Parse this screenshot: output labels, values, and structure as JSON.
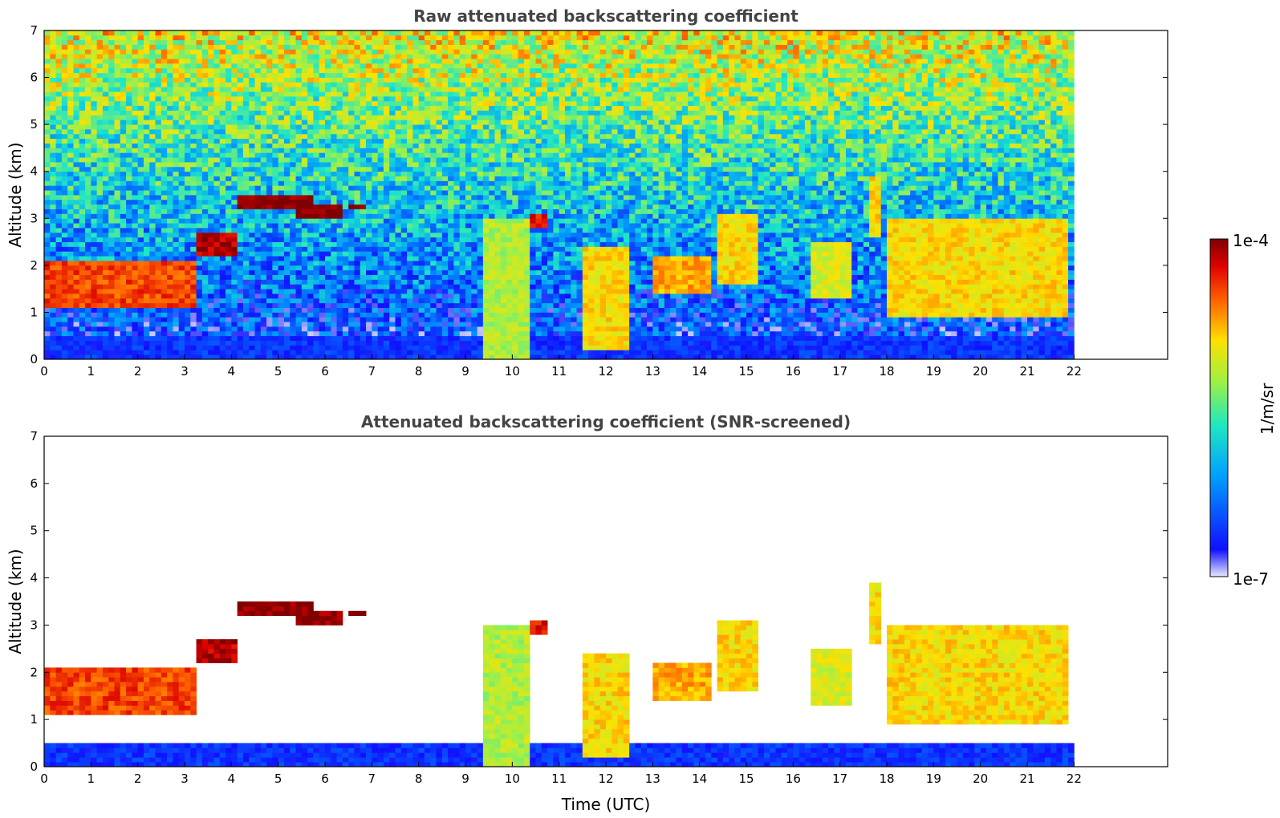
{
  "chart_data": [
    {
      "type": "heatmap",
      "title": "Raw attenuated backscattering coefficient",
      "xlabel": "",
      "ylabel": "Altitude (km)",
      "xlim": [
        0,
        24
      ],
      "ylim": [
        0,
        7
      ],
      "x_ticks": [
        "0",
        "1",
        "2",
        "3",
        "4",
        "5",
        "6",
        "7",
        "8",
        "9",
        "10",
        "11",
        "12",
        "13",
        "14",
        "15",
        "16",
        "17",
        "18",
        "19",
        "20",
        "21",
        "22"
      ],
      "y_ticks": [
        "0",
        "1",
        "2",
        "3",
        "4",
        "5",
        "6",
        "7"
      ],
      "data_extent_hours": [
        0,
        22
      ],
      "screened": false,
      "features": [
        {
          "kind": "cloud",
          "x": [
            4.1,
            5.7
          ],
          "y": [
            3.2,
            3.5
          ],
          "level": 1.0
        },
        {
          "kind": "cloud",
          "x": [
            5.4,
            6.4
          ],
          "y": [
            3.0,
            3.3
          ],
          "level": 1.0
        },
        {
          "kind": "cloud",
          "x": [
            6.5,
            6.9
          ],
          "y": [
            3.2,
            3.3
          ],
          "level": 1.0
        },
        {
          "kind": "cloud",
          "x": [
            3.2,
            4.1
          ],
          "y": [
            2.2,
            2.7
          ],
          "level": 0.95
        },
        {
          "kind": "layer",
          "x": [
            0,
            3.2
          ],
          "y": [
            1.1,
            2.1
          ],
          "level": 0.85
        },
        {
          "kind": "cloud",
          "x": [
            13.0,
            14.3
          ],
          "y": [
            1.4,
            2.2
          ],
          "level": 0.75
        },
        {
          "kind": "cloud",
          "x": [
            10.4,
            10.7
          ],
          "y": [
            2.8,
            3.1
          ],
          "level": 0.9
        },
        {
          "kind": "cloud",
          "x": [
            11.5,
            12.5
          ],
          "y": [
            0.2,
            2.4
          ],
          "level": 0.7
        },
        {
          "kind": "cloud",
          "x": [
            9.4,
            10.4
          ],
          "y": [
            0.0,
            3.0
          ],
          "level": 0.6
        },
        {
          "kind": "cloud",
          "x": [
            14.4,
            15.3
          ],
          "y": [
            1.6,
            3.1
          ],
          "level": 0.7
        },
        {
          "kind": "cloud",
          "x": [
            16.4,
            17.2
          ],
          "y": [
            1.3,
            2.5
          ],
          "level": 0.65
        },
        {
          "kind": "cloud",
          "x": [
            17.6,
            17.9
          ],
          "y": [
            2.6,
            3.9
          ],
          "level": 0.7
        },
        {
          "kind": "cloud",
          "x": [
            18.0,
            21.9
          ],
          "y": [
            0.9,
            3.0
          ],
          "level": 0.7
        },
        {
          "kind": "boundary",
          "x": [
            0,
            22
          ],
          "y": [
            0.0,
            0.5
          ],
          "level": 0.15
        }
      ]
    },
    {
      "type": "heatmap",
      "title": "Attenuated backscattering coefficient (SNR-screened)",
      "xlabel": "Time (UTC)",
      "ylabel": "Altitude (km)",
      "xlim": [
        0,
        24
      ],
      "ylim": [
        0,
        7
      ],
      "x_ticks": [
        "0",
        "1",
        "2",
        "3",
        "4",
        "5",
        "6",
        "7",
        "8",
        "9",
        "10",
        "11",
        "12",
        "13",
        "14",
        "15",
        "16",
        "17",
        "18",
        "19",
        "20",
        "21",
        "22"
      ],
      "y_ticks": [
        "0",
        "1",
        "2",
        "3",
        "4",
        "5",
        "6",
        "7"
      ],
      "data_extent_hours": [
        0,
        22
      ],
      "screened": true
    }
  ],
  "colorbar": {
    "label": "1/m/sr",
    "min_label": "1e-7",
    "max_label": "1e-4",
    "colormap": "jet",
    "log_scale": true
  }
}
